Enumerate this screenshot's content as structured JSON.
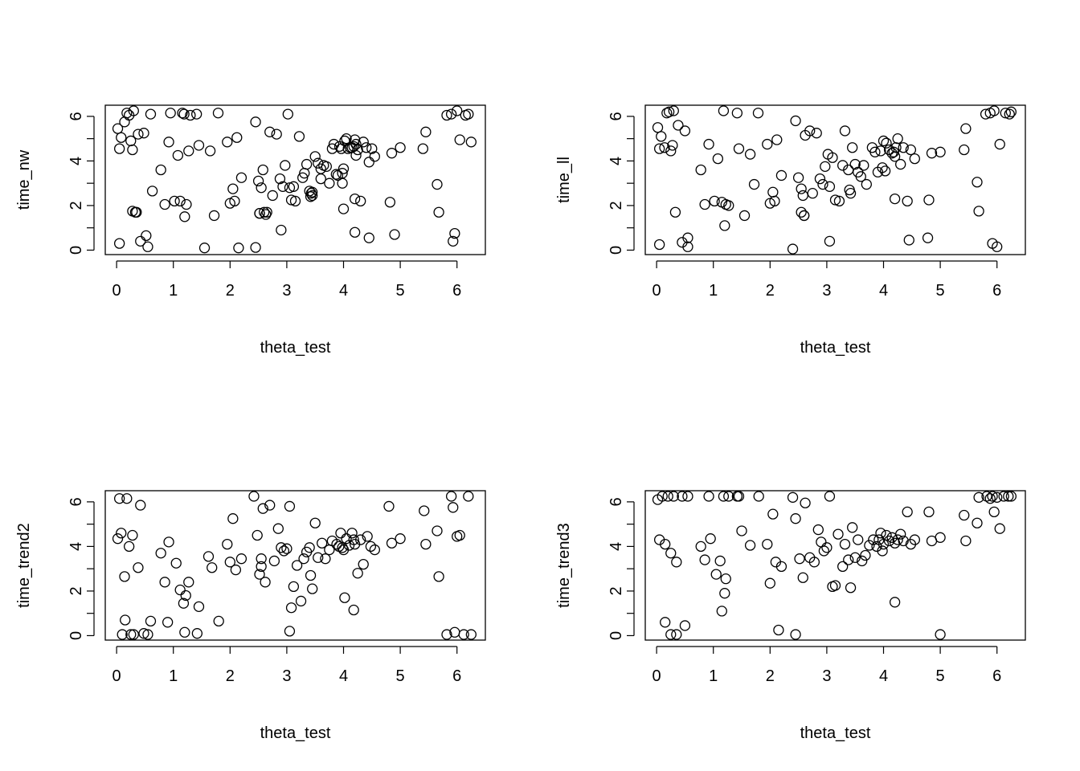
{
  "chart_data": [
    {
      "type": "scatter",
      "title": "",
      "xlabel": "theta_test",
      "ylabel": "time_nw",
      "xlim": [
        -0.2,
        6.5
      ],
      "ylim": [
        -0.2,
        6.5
      ],
      "xticks": [
        "0",
        "1",
        "2",
        "3",
        "4",
        "5",
        "6"
      ],
      "yticks": [
        "0",
        "2",
        "4",
        "6"
      ],
      "grid": false,
      "series": [
        {
          "x": [
            0.02,
            0.05,
            0.08,
            0.14,
            0.18,
            0.22,
            0.25,
            0.28,
            0.3,
            0.33,
            0.38,
            0.42,
            0.48,
            0.52,
            0.6,
            0.63,
            0.78,
            0.85,
            0.92,
            0.95,
            1.02,
            1.08,
            1.12,
            1.16,
            1.19,
            1.23,
            1.27,
            1.3,
            1.41,
            1.45,
            1.55,
            1.65,
            1.72,
            1.79,
            1.95,
            2.0,
            2.05,
            2.08,
            2.12,
            2.2,
            2.45,
            2.5,
            2.52,
            2.55,
            2.58,
            2.6,
            2.63,
            2.65,
            2.7,
            2.75,
            2.82,
            2.88,
            2.93,
            2.97,
            3.02,
            3.05,
            3.08,
            3.12,
            3.15,
            3.22,
            3.28,
            3.31,
            3.35,
            3.4,
            3.43,
            3.45,
            3.5,
            3.55,
            3.6,
            3.65,
            3.7,
            3.75,
            3.8,
            3.83,
            3.87,
            3.9,
            3.93,
            3.96,
            3.98,
            4.0,
            4.02,
            4.05,
            4.08,
            4.12,
            4.15,
            4.18,
            4.2,
            4.22,
            4.25,
            4.3,
            4.35,
            4.4,
            4.45,
            4.5,
            4.55,
            4.82,
            4.85,
            4.9,
            5.0,
            5.4,
            5.45,
            5.65,
            5.68,
            5.82,
            5.9,
            5.93,
            5.96,
            6.0,
            6.05,
            6.15,
            6.2,
            6.25,
            0.55,
            1.2,
            0.35,
            0.05,
            4.0,
            3.98,
            4.2,
            4.22,
            3.42,
            3.45,
            2.9,
            4.45,
            4.2,
            0.28,
            3.6,
            2.52,
            2.45,
            2.15
          ],
          "y": [
            5.45,
            4.55,
            5.05,
            5.75,
            6.15,
            6.05,
            4.9,
            4.5,
            6.25,
            1.7,
            5.2,
            0.4,
            5.25,
            0.65,
            6.1,
            2.65,
            3.6,
            2.05,
            4.85,
            6.15,
            2.2,
            4.25,
            2.2,
            6.15,
            6.1,
            2.05,
            4.45,
            6.05,
            6.1,
            4.7,
            0.1,
            4.45,
            1.55,
            6.15,
            4.85,
            2.1,
            2.75,
            2.2,
            5.05,
            3.25,
            5.75,
            3.1,
            1.65,
            2.8,
            3.6,
            1.7,
            1.6,
            1.7,
            5.3,
            2.45,
            5.2,
            3.2,
            2.85,
            3.8,
            6.1,
            2.8,
            2.25,
            2.85,
            2.2,
            5.1,
            3.25,
            3.45,
            3.85,
            2.65,
            2.55,
            2.45,
            4.2,
            3.9,
            3.2,
            3.8,
            3.75,
            3.0,
            4.55,
            4.75,
            3.4,
            3.35,
            4.65,
            4.55,
            3.45,
            3.65,
            4.9,
            5.0,
            4.55,
            4.6,
            4.6,
            4.65,
            4.95,
            4.75,
            4.5,
            2.2,
            4.85,
            4.6,
            3.95,
            4.55,
            4.2,
            2.15,
            4.35,
            0.7,
            4.6,
            4.55,
            5.3,
            2.95,
            1.7,
            6.05,
            6.1,
            0.4,
            0.75,
            6.25,
            4.95,
            6.05,
            6.1,
            4.85,
            0.15,
            1.5,
            1.7,
            0.3,
            1.85,
            3.0,
            2.3,
            4.25,
            2.4,
            2.6,
            0.9,
            0.55,
            0.8,
            1.75,
            3.65,
            1.65,
            0.12,
            0.1
          ]
        }
      ]
    },
    {
      "type": "scatter",
      "title": "",
      "xlabel": "theta_test",
      "ylabel": "time_ll",
      "xlim": [
        -0.2,
        6.5
      ],
      "ylim": [
        -0.2,
        6.5
      ],
      "xticks": [
        "0",
        "1",
        "2",
        "3",
        "4",
        "5",
        "6"
      ],
      "yticks": [
        "0",
        "2",
        "4",
        "6"
      ],
      "grid": false,
      "series": [
        {
          "x": [
            0.02,
            0.05,
            0.08,
            0.14,
            0.18,
            0.22,
            0.25,
            0.28,
            0.3,
            0.33,
            0.38,
            0.45,
            0.5,
            0.55,
            0.78,
            0.85,
            0.92,
            1.02,
            1.08,
            1.15,
            1.18,
            1.22,
            1.27,
            1.42,
            1.45,
            1.55,
            1.65,
            1.72,
            1.79,
            1.95,
            2.0,
            2.05,
            2.08,
            2.12,
            2.2,
            2.4,
            2.45,
            2.5,
            2.55,
            2.58,
            2.62,
            2.7,
            2.75,
            2.82,
            2.88,
            2.93,
            2.97,
            3.02,
            3.05,
            3.1,
            3.15,
            3.22,
            3.28,
            3.32,
            3.38,
            3.42,
            3.45,
            3.5,
            3.55,
            3.6,
            3.65,
            3.7,
            3.8,
            3.85,
            3.9,
            3.95,
            3.98,
            4.0,
            4.03,
            4.05,
            4.1,
            4.15,
            4.18,
            4.2,
            4.22,
            4.25,
            4.3,
            4.35,
            4.42,
            4.48,
            4.55,
            4.8,
            4.85,
            5.0,
            5.42,
            5.45,
            5.65,
            5.68,
            5.8,
            5.88,
            5.92,
            5.95,
            6.0,
            6.05,
            6.15,
            6.22,
            6.25,
            1.2,
            0.55,
            3.05,
            4.2,
            4.45,
            4.78,
            2.6,
            0.05,
            3.4,
            2.55,
            2.6
          ],
          "y": [
            5.5,
            4.55,
            5.1,
            4.6,
            6.15,
            6.2,
            4.45,
            4.7,
            6.25,
            1.7,
            5.6,
            0.35,
            5.35,
            0.55,
            3.6,
            2.05,
            4.75,
            2.2,
            4.1,
            2.15,
            6.25,
            2.05,
            2.0,
            6.15,
            4.55,
            1.55,
            4.3,
            2.95,
            6.15,
            4.75,
            2.1,
            2.6,
            2.2,
            4.95,
            3.35,
            0.05,
            5.8,
            3.25,
            2.75,
            2.45,
            5.15,
            5.35,
            2.55,
            5.25,
            3.2,
            2.95,
            3.75,
            4.3,
            2.85,
            4.15,
            2.25,
            2.2,
            3.8,
            5.35,
            3.6,
            2.55,
            4.6,
            3.85,
            3.5,
            3.3,
            3.8,
            2.95,
            4.6,
            4.4,
            3.5,
            4.45,
            3.7,
            4.9,
            3.55,
            4.8,
            4.5,
            4.35,
            4.4,
            4.2,
            4.6,
            5.0,
            3.85,
            4.6,
            2.2,
            4.5,
            4.1,
            2.25,
            4.35,
            4.4,
            4.5,
            5.45,
            3.05,
            1.75,
            6.1,
            6.15,
            0.3,
            6.25,
            0.15,
            4.75,
            6.15,
            6.1,
            6.2,
            1.1,
            0.15,
            0.4,
            2.3,
            0.45,
            0.55,
            1.55,
            0.25,
            2.7,
            1.7,
            1.55
          ]
        }
      ]
    },
    {
      "type": "scatter",
      "title": "",
      "xlabel": "theta_test",
      "ylabel": "time_trend2",
      "xlim": [
        -0.2,
        6.5
      ],
      "ylim": [
        -0.2,
        6.5
      ],
      "xticks": [
        "0",
        "1",
        "2",
        "3",
        "4",
        "5",
        "6"
      ],
      "yticks": [
        "0",
        "2",
        "4",
        "6"
      ],
      "grid": false,
      "series": [
        {
          "x": [
            0.02,
            0.05,
            0.08,
            0.14,
            0.18,
            0.22,
            0.28,
            0.3,
            0.38,
            0.42,
            0.48,
            0.55,
            0.6,
            0.78,
            0.85,
            0.92,
            1.05,
            1.12,
            1.18,
            1.22,
            1.27,
            1.42,
            1.45,
            1.62,
            1.68,
            1.8,
            1.95,
            2.0,
            2.05,
            2.1,
            2.2,
            2.42,
            2.48,
            2.52,
            2.55,
            2.58,
            2.62,
            2.7,
            2.78,
            2.85,
            2.9,
            2.95,
            3.0,
            3.05,
            3.08,
            3.12,
            3.18,
            3.25,
            3.3,
            3.35,
            3.4,
            3.45,
            3.5,
            3.55,
            3.62,
            3.68,
            3.75,
            3.8,
            3.88,
            3.92,
            3.95,
            3.98,
            4.0,
            4.05,
            4.1,
            4.15,
            4.18,
            4.2,
            4.25,
            4.3,
            4.35,
            4.42,
            4.48,
            4.55,
            4.8,
            4.85,
            5.0,
            5.42,
            5.45,
            5.65,
            5.68,
            5.82,
            5.9,
            5.93,
            5.96,
            6.0,
            6.05,
            6.12,
            6.2,
            6.25,
            0.1,
            0.15,
            0.25,
            1.2,
            3.05,
            4.02,
            4.18,
            3.42,
            2.55,
            0.9
          ],
          "y": [
            4.35,
            6.15,
            4.6,
            2.65,
            6.15,
            4.0,
            4.5,
            0.05,
            3.05,
            5.85,
            0.1,
            0.05,
            0.65,
            3.7,
            2.4,
            4.2,
            3.25,
            2.05,
            1.45,
            1.8,
            2.4,
            0.1,
            1.3,
            3.55,
            3.05,
            0.65,
            4.1,
            3.3,
            5.25,
            2.95,
            3.45,
            6.25,
            4.5,
            2.75,
            3.45,
            5.7,
            2.4,
            5.85,
            3.35,
            4.8,
            3.95,
            3.8,
            3.9,
            5.8,
            1.25,
            2.2,
            3.15,
            1.55,
            3.45,
            3.75,
            3.95,
            2.1,
            5.05,
            3.5,
            4.15,
            3.45,
            3.85,
            4.25,
            4.1,
            4.0,
            4.6,
            3.95,
            3.85,
            4.35,
            4.05,
            4.6,
            4.3,
            4.1,
            2.8,
            4.3,
            3.2,
            4.45,
            4.0,
            3.85,
            5.8,
            4.15,
            4.35,
            5.6,
            4.1,
            4.7,
            2.65,
            0.05,
            6.25,
            5.75,
            0.15,
            4.45,
            4.5,
            0.05,
            6.25,
            0.05,
            0.05,
            0.7,
            0.05,
            0.15,
            0.2,
            1.7,
            1.15,
            2.7,
            3.1,
            0.6
          ]
        }
      ]
    },
    {
      "type": "scatter",
      "title": "",
      "xlabel": "theta_test",
      "ylabel": "time_trend3",
      "xlim": [
        -0.2,
        6.5
      ],
      "ylim": [
        -0.2,
        6.5
      ],
      "xticks": [
        "0",
        "1",
        "2",
        "3",
        "4",
        "5",
        "6"
      ],
      "yticks": [
        "0",
        "2",
        "4",
        "6"
      ],
      "grid": false,
      "series": [
        {
          "x": [
            0.02,
            0.05,
            0.1,
            0.15,
            0.2,
            0.25,
            0.3,
            0.35,
            0.45,
            0.55,
            0.78,
            0.85,
            0.92,
            0.95,
            1.05,
            1.12,
            1.18,
            1.22,
            1.27,
            1.42,
            1.45,
            1.5,
            1.65,
            1.8,
            1.95,
            2.0,
            2.05,
            2.1,
            2.2,
            2.4,
            2.45,
            2.52,
            2.58,
            2.62,
            2.7,
            2.78,
            2.85,
            2.9,
            2.95,
            3.0,
            3.05,
            3.1,
            3.15,
            3.2,
            3.28,
            3.32,
            3.38,
            3.42,
            3.45,
            3.5,
            3.55,
            3.62,
            3.68,
            3.75,
            3.82,
            3.88,
            3.92,
            3.95,
            3.98,
            4.0,
            4.05,
            4.1,
            4.15,
            4.2,
            4.25,
            4.3,
            4.35,
            4.42,
            4.48,
            4.55,
            4.8,
            4.85,
            5.0,
            5.42,
            5.45,
            5.65,
            5.68,
            5.82,
            5.88,
            5.92,
            5.95,
            6.0,
            6.05,
            6.12,
            6.2,
            6.25,
            0.15,
            0.25,
            0.5,
            1.15,
            2.15,
            2.45,
            5.0,
            4.2,
            0.35,
            1.2
          ],
          "y": [
            6.1,
            4.3,
            6.25,
            4.1,
            6.25,
            3.7,
            6.25,
            3.3,
            6.25,
            6.25,
            4.0,
            3.4,
            6.25,
            4.35,
            2.75,
            3.35,
            6.25,
            2.55,
            6.25,
            6.25,
            6.25,
            4.7,
            4.05,
            6.25,
            4.1,
            2.35,
            5.45,
            3.3,
            3.1,
            6.2,
            5.25,
            3.45,
            2.6,
            5.95,
            3.5,
            3.3,
            4.75,
            4.2,
            3.8,
            3.95,
            6.25,
            2.2,
            2.25,
            4.55,
            3.1,
            4.1,
            3.4,
            2.15,
            4.85,
            3.5,
            4.3,
            3.35,
            3.6,
            4.05,
            4.3,
            4.0,
            4.3,
            4.6,
            3.8,
            4.1,
            4.5,
            4.25,
            4.4,
            4.15,
            4.3,
            4.55,
            4.25,
            5.55,
            4.1,
            4.3,
            5.55,
            4.25,
            4.4,
            5.4,
            4.25,
            5.05,
            6.2,
            6.25,
            6.15,
            6.25,
            5.55,
            6.2,
            4.8,
            6.25,
            6.25,
            6.25,
            0.6,
            0.05,
            0.45,
            1.1,
            0.25,
            0.05,
            0.05,
            1.5,
            0.05,
            1.9
          ]
        }
      ]
    }
  ]
}
